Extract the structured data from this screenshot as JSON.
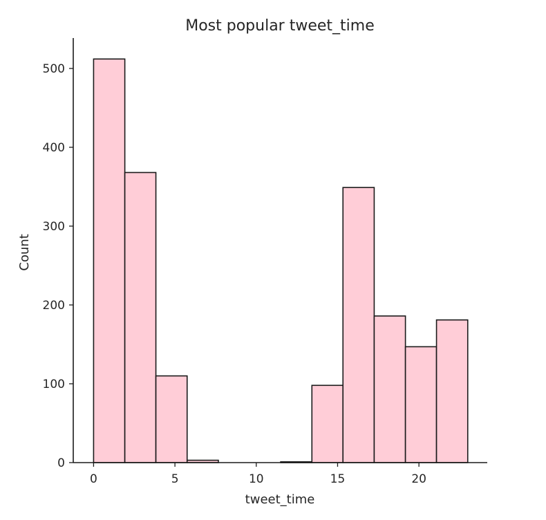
{
  "chart_data": {
    "type": "bar",
    "title": "Most popular tweet_time",
    "xlabel": "tweet_time",
    "ylabel": "Count",
    "bin_edges": [
      0,
      1.92,
      3.83,
      5.75,
      7.67,
      9.58,
      11.5,
      13.42,
      15.33,
      17.25,
      19.17,
      21.08,
      23
    ],
    "values": [
      512,
      368,
      110,
      3,
      0,
      0,
      1,
      98,
      349,
      186,
      147,
      181
    ],
    "xlim": [
      -1.25,
      24.2
    ],
    "ylim": [
      0,
      540
    ],
    "xticks": [
      0,
      5,
      10,
      15,
      20
    ],
    "xtick_labels": [
      "0",
      "5",
      "10",
      "15",
      "20"
    ],
    "yticks": [
      0,
      100,
      200,
      300,
      400,
      500
    ],
    "ytick_labels": [
      "0",
      "100",
      "200",
      "300",
      "400",
      "500"
    ],
    "colors": {
      "bar_fill": "#ffcdd7",
      "bar_edge": "#1a1a1a",
      "axis": "#1a1a1a",
      "text": "#262626"
    },
    "grid": false,
    "legend": "none"
  }
}
